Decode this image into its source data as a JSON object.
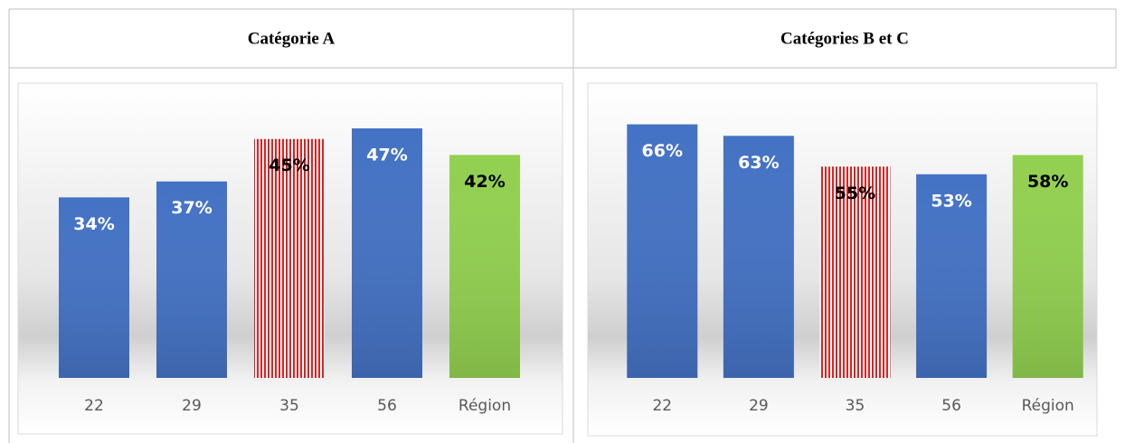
{
  "chart_data": [
    {
      "type": "bar",
      "title": "Catégorie A",
      "categories": [
        "22",
        "29",
        "35",
        "56",
        "Région"
      ],
      "values": [
        34,
        37,
        45,
        47,
        42
      ],
      "value_labels": [
        "34%",
        "37%",
        "45%",
        "47%",
        "42%"
      ],
      "colors": [
        "#4472c4",
        "#4472c4",
        "#e02020",
        "#4472c4",
        "#92d050"
      ],
      "hatch": [
        false,
        false,
        true,
        false,
        false
      ],
      "label_colors": [
        "#ffffff",
        "#ffffff",
        "#000000",
        "#ffffff",
        "#000000"
      ],
      "ylim": [
        0,
        55
      ]
    },
    {
      "type": "bar",
      "title": "Catégories B et C",
      "categories": [
        "22",
        "29",
        "35",
        "56",
        "Région"
      ],
      "values": [
        66,
        63,
        55,
        53,
        58
      ],
      "value_labels": [
        "66%",
        "63%",
        "55%",
        "53%",
        "58%"
      ],
      "colors": [
        "#4472c4",
        "#4472c4",
        "#e02020",
        "#4472c4",
        "#92d050"
      ],
      "hatch": [
        false,
        false,
        true,
        false,
        false
      ],
      "label_colors": [
        "#ffffff",
        "#ffffff",
        "#000000",
        "#ffffff",
        "#000000"
      ],
      "ylim": [
        0,
        76
      ]
    }
  ]
}
